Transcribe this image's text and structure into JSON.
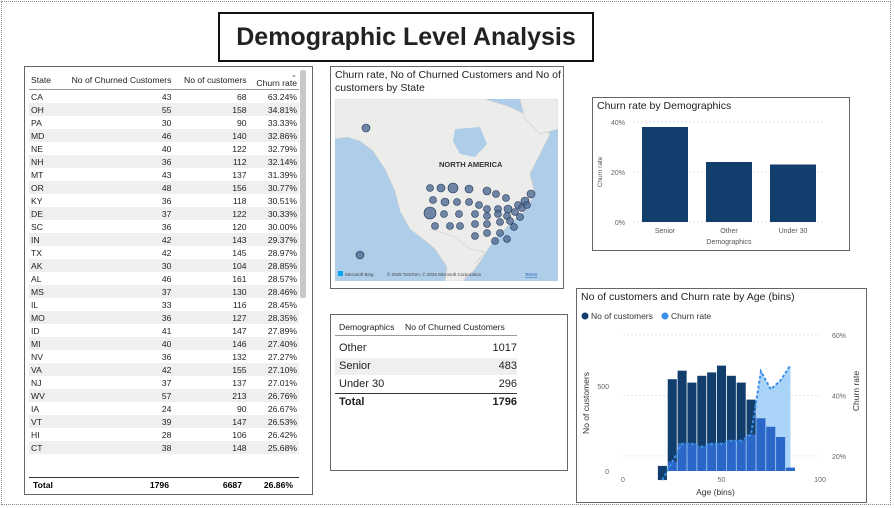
{
  "title": "Demographic Level Analysis",
  "state_table": {
    "headers": [
      "State",
      "No of Churned Customers",
      "No of customers",
      "Churn rate"
    ],
    "rows": [
      [
        "CA",
        "43",
        "68",
        "63.24%"
      ],
      [
        "OH",
        "55",
        "158",
        "34.81%"
      ],
      [
        "PA",
        "30",
        "90",
        "33.33%"
      ],
      [
        "MD",
        "46",
        "140",
        "32.86%"
      ],
      [
        "NE",
        "40",
        "122",
        "32.79%"
      ],
      [
        "NH",
        "36",
        "112",
        "32.14%"
      ],
      [
        "MT",
        "43",
        "137",
        "31.39%"
      ],
      [
        "OR",
        "48",
        "156",
        "30.77%"
      ],
      [
        "KY",
        "36",
        "118",
        "30.51%"
      ],
      [
        "DE",
        "37",
        "122",
        "30.33%"
      ],
      [
        "SC",
        "36",
        "120",
        "30.00%"
      ],
      [
        "IN",
        "42",
        "143",
        "29.37%"
      ],
      [
        "TX",
        "42",
        "145",
        "28.97%"
      ],
      [
        "AK",
        "30",
        "104",
        "28.85%"
      ],
      [
        "AL",
        "46",
        "161",
        "28.57%"
      ],
      [
        "MS",
        "37",
        "130",
        "28.46%"
      ],
      [
        "IL",
        "33",
        "116",
        "28.45%"
      ],
      [
        "MO",
        "36",
        "127",
        "28.35%"
      ],
      [
        "ID",
        "41",
        "147",
        "27.89%"
      ],
      [
        "MI",
        "40",
        "146",
        "27.40%"
      ],
      [
        "NV",
        "36",
        "132",
        "27.27%"
      ],
      [
        "VA",
        "42",
        "155",
        "27.10%"
      ],
      [
        "NJ",
        "37",
        "137",
        "27.01%"
      ],
      [
        "WV",
        "57",
        "213",
        "26.76%"
      ],
      [
        "IA",
        "24",
        "90",
        "26.67%"
      ],
      [
        "VT",
        "39",
        "147",
        "26.53%"
      ],
      [
        "HI",
        "28",
        "106",
        "26.42%"
      ],
      [
        "CT",
        "38",
        "148",
        "25.68%"
      ]
    ],
    "total": [
      "Total",
      "1796",
      "6687",
      "26.86%"
    ]
  },
  "map_card": {
    "title": "Churn rate, No of Churned Customers and No of customers by State",
    "region_label": "NORTH AMERICA",
    "bing_label": "Microsoft Bing",
    "copyright": "© 2025 TomTom, © 2025 Microsoft Corporation",
    "terms": "Terms"
  },
  "bar_card": {
    "title": "Churn rate by Demographics",
    "ylabel": "Churn rate",
    "xlabel": "Demographics"
  },
  "demo_table": {
    "headers": [
      "Demographics",
      "No of Churned Customers"
    ],
    "rows": [
      [
        "Other",
        "1017"
      ],
      [
        "Senior",
        "483"
      ],
      [
        "Under 30",
        "296"
      ]
    ],
    "total": [
      "Total",
      "1796"
    ]
  },
  "combo_card": {
    "title": "No of customers and Churn rate by Age (bins)",
    "legend": [
      "No of customers",
      "Churn rate"
    ],
    "ylabel_left": "No of customers",
    "ylabel_right": "Churn rate",
    "xlabel": "Age (bins)"
  },
  "colors": {
    "dark_blue": "#123E6E",
    "light_blue": "#3A8FEA",
    "area_blue": "#A9D3F7"
  },
  "chart_data": [
    {
      "type": "bar",
      "title": "Churn rate by Demographics",
      "xlabel": "Demographics",
      "ylabel": "Churn rate",
      "categories": [
        "Senior",
        "Other",
        "Under 30"
      ],
      "values": [
        0.38,
        0.24,
        0.23
      ],
      "ylim": [
        0,
        0.4
      ],
      "yticks": [
        "0%",
        "20%",
        "40%"
      ]
    },
    {
      "type": "bar",
      "title": "No of customers and Churn rate by Age (bins)",
      "xlabel": "Age (bins)",
      "ylabel": "No of customers",
      "y2label": "Churn rate",
      "x": [
        20,
        25,
        30,
        35,
        40,
        45,
        50,
        55,
        60,
        65,
        70,
        75,
        80,
        85
      ],
      "series": [
        {
          "name": "No of customers",
          "type": "bar",
          "values": [
            30,
            540,
            590,
            520,
            560,
            580,
            620,
            560,
            520,
            420,
            310,
            260,
            200,
            20
          ]
        },
        {
          "name": "Churn rate",
          "type": "line",
          "values": [
            0.12,
            0.18,
            0.24,
            0.24,
            0.23,
            0.24,
            0.24,
            0.25,
            0.25,
            0.27,
            0.48,
            0.42,
            0.45,
            0.5
          ]
        }
      ],
      "xlim": [
        0,
        100
      ],
      "xticks": [
        "0",
        "50",
        "100"
      ],
      "ylim": [
        0,
        800
      ],
      "yticks": [
        "0",
        "500"
      ],
      "y2lim": [
        0.15,
        0.6
      ],
      "y2ticks": [
        "20%",
        "40%",
        "60%"
      ]
    }
  ]
}
